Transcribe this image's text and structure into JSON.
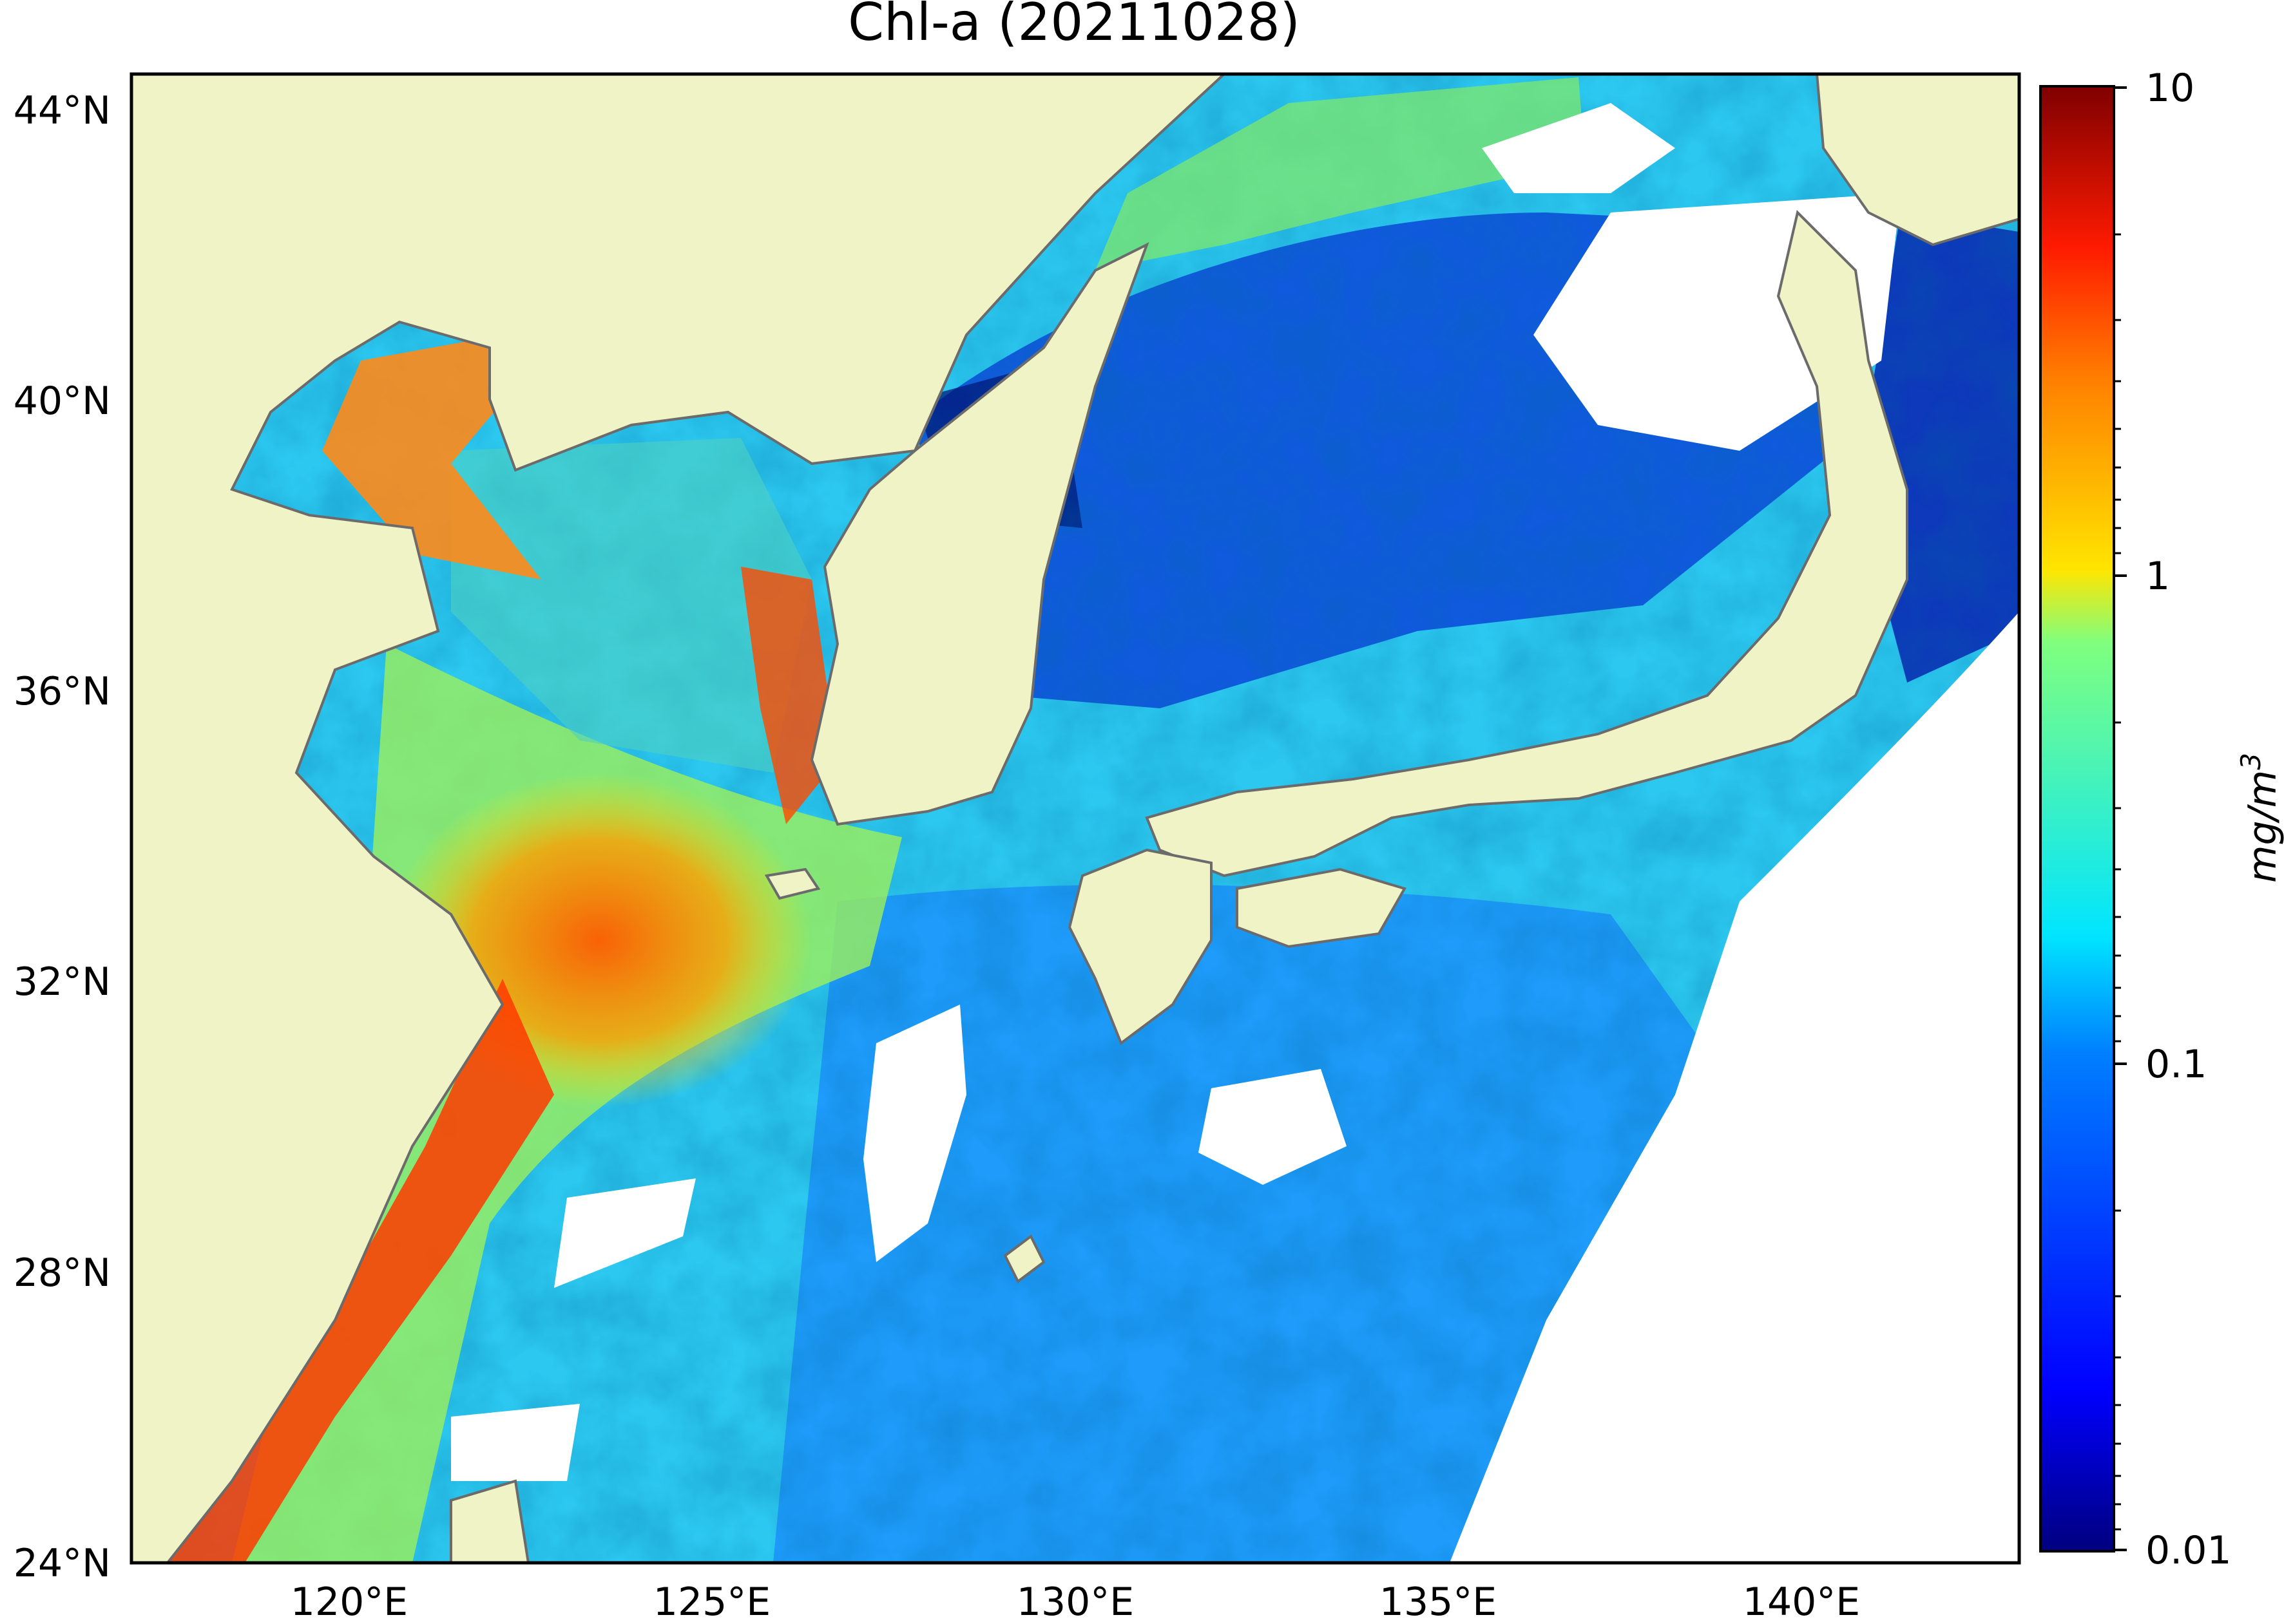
{
  "title": "Chl-a (20211028)",
  "map": {
    "lat_ticks": [
      "44°N",
      "40°N",
      "36°N",
      "32°N",
      "28°N",
      "24°N"
    ],
    "lon_ticks": [
      "120°E",
      "125°E",
      "130°E",
      "135°E",
      "140°E"
    ],
    "lat_range": [
      24,
      44.5
    ],
    "lon_range": [
      117,
      143
    ],
    "land_color": "#f0f3c6",
    "coast_color": "#6b6b6b",
    "no_data_color": "#ffffff"
  },
  "colorbar": {
    "scale": "log",
    "range": [
      0.01,
      10
    ],
    "tick_labels": [
      "10",
      "1",
      "0.1",
      "0.01"
    ],
    "label_base": "mg/m",
    "label_exp": "3",
    "colormap": "jet",
    "colors": [
      "#00007f",
      "#0000ff",
      "#007fff",
      "#00e5ff",
      "#7fff7f",
      "#ffe500",
      "#ff7f00",
      "#ff1a00",
      "#7f0000"
    ]
  }
}
